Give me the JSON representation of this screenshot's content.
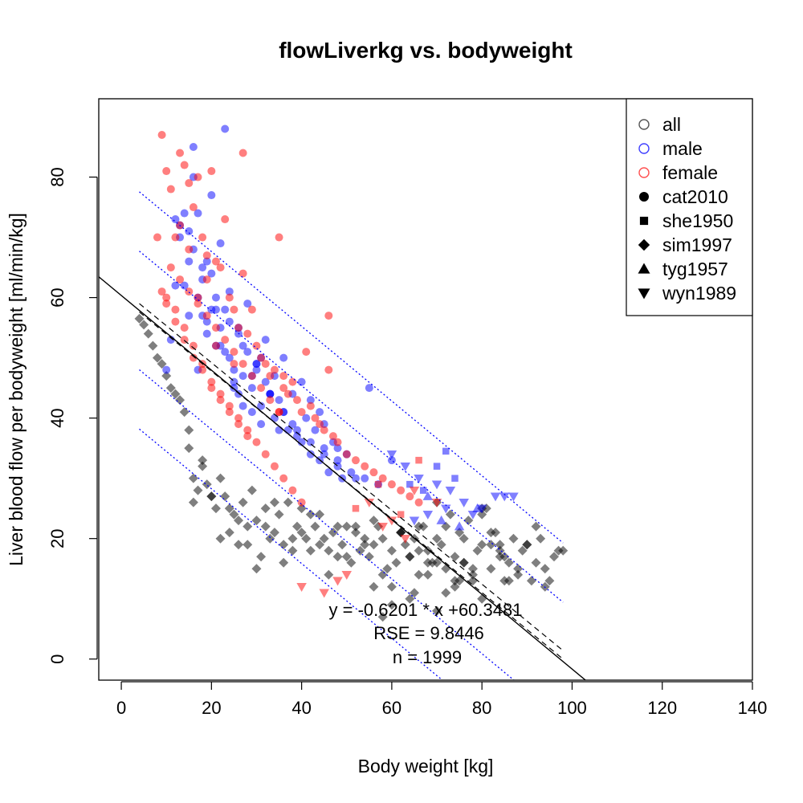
{
  "chart_data": {
    "type": "scatter",
    "title": "flowLiverkg vs. bodyweight",
    "xlabel": "Body weight [kg]",
    "ylabel": "Liver blood flow per bodyweight [ml/min/kg]",
    "xlim": [
      -5,
      140
    ],
    "ylim": [
      -3.5,
      93
    ],
    "xticks": [
      0,
      20,
      40,
      60,
      80,
      100,
      120,
      140
    ],
    "yticks": [
      0,
      20,
      40,
      60,
      80
    ],
    "xtick_labels": [
      "0",
      "20",
      "40",
      "60",
      "80",
      "100",
      "120",
      "140"
    ],
    "ytick_labels": [
      "0",
      "20",
      "40",
      "60",
      "80"
    ],
    "grid": false,
    "legend_position": "top-right",
    "legend": [
      {
        "label": "all",
        "kind": "color",
        "color": "#555555",
        "marker": "circle-open"
      },
      {
        "label": "male",
        "kind": "color",
        "color": "#4040ff",
        "marker": "circle-open"
      },
      {
        "label": "female",
        "kind": "color",
        "color": "#ff5050",
        "marker": "circle-open"
      },
      {
        "label": "cat2010",
        "kind": "study",
        "color": "#000000",
        "marker": "circle"
      },
      {
        "label": "she1950",
        "kind": "study",
        "color": "#000000",
        "marker": "square"
      },
      {
        "label": "sim1997",
        "kind": "study",
        "color": "#000000",
        "marker": "diamond"
      },
      {
        "label": "tyg1957",
        "kind": "study",
        "color": "#000000",
        "marker": "triangle-up"
      },
      {
        "label": "wyn1989",
        "kind": "study",
        "color": "#000000",
        "marker": "triangle-down"
      }
    ],
    "colors": {
      "all": "#000000",
      "male": "#0000ff",
      "female": "#ff0000"
    },
    "regression": {
      "slope": -0.6201,
      "intercept": 60.3481
    },
    "bands": {
      "sd_offsets": [
        -9.8446,
        -19.6892,
        9.8446,
        19.6892
      ],
      "x_range": [
        4,
        98
      ]
    },
    "ci": {
      "x_range": [
        4,
        98
      ],
      "lower": [
        57.6,
        0.0
      ],
      "upper": [
        59.0,
        1.4
      ]
    },
    "annotations": [
      "y = -0.6201 * x +60.3481",
      "RSE = 9.8446",
      "n = 1999"
    ],
    "series": [
      {
        "group": "all",
        "marker": "diamond",
        "x": [
          4,
          5,
          6,
          7,
          8,
          9,
          10,
          11,
          12,
          13,
          14,
          15,
          16,
          16,
          17,
          18,
          19,
          20,
          21,
          22,
          23,
          24,
          25,
          26,
          27,
          28,
          29,
          30,
          31,
          32,
          33,
          34,
          35,
          36,
          37,
          38,
          39,
          40,
          41,
          42,
          43,
          44,
          45,
          46,
          47,
          48,
          49,
          50,
          51,
          52,
          53,
          54,
          55,
          56,
          57,
          58,
          59,
          60,
          61,
          62,
          63,
          64,
          65,
          66,
          67,
          68,
          69,
          70,
          71,
          72,
          73,
          74,
          75,
          76,
          77,
          78,
          79,
          80,
          81,
          82,
          83,
          84,
          85,
          86,
          87,
          88,
          89,
          90,
          91,
          92,
          93,
          94,
          95,
          96,
          97,
          98,
          15,
          18,
          20,
          22,
          24,
          26,
          28,
          30,
          32,
          34,
          36,
          38,
          40,
          42,
          44,
          46,
          48,
          50,
          52,
          54,
          56,
          58,
          60,
          62,
          64,
          66,
          68,
          70,
          72,
          74,
          76,
          78,
          80,
          82,
          84,
          86,
          88,
          90,
          92,
          94,
          60,
          65,
          70,
          75,
          80,
          85,
          62,
          68,
          72,
          78,
          82,
          58,
          64,
          74,
          76,
          70,
          66,
          80,
          84,
          56
        ],
        "y": [
          56.5,
          55.5,
          54,
          52,
          50,
          49,
          47,
          45,
          44,
          43,
          41,
          35,
          26,
          30,
          28,
          32,
          29,
          27,
          25,
          30,
          27,
          21,
          24,
          19,
          26,
          22,
          28,
          23,
          17,
          25,
          20,
          21,
          24,
          19,
          26,
          18,
          22,
          21,
          20,
          24,
          22,
          19,
          20,
          18,
          21,
          17,
          19,
          22,
          16,
          21,
          18,
          20,
          17,
          19,
          22,
          20,
          15,
          18,
          16,
          21,
          19,
          17,
          20,
          14,
          22,
          18,
          16,
          20,
          19,
          15,
          24,
          17,
          21,
          16,
          23,
          14,
          18,
          19,
          25,
          15,
          21,
          17,
          13,
          16,
          20,
          14,
          18,
          19,
          13,
          16,
          20,
          15,
          13,
          17,
          18,
          18,
          38,
          33,
          27,
          20,
          25,
          23,
          19,
          15,
          22,
          26,
          16,
          20,
          25,
          18,
          24,
          14,
          22,
          17,
          22,
          19,
          23,
          14,
          12,
          21,
          17,
          18,
          14,
          16,
          22,
          13,
          20,
          13,
          25,
          21,
          18,
          13,
          15,
          19,
          22,
          12,
          9,
          11,
          8,
          13,
          10,
          17,
          21,
          16,
          11,
          15,
          19,
          7,
          10,
          12,
          16,
          26,
          22,
          24,
          19,
          12
        ]
      },
      {
        "group": "male",
        "marker": "circle",
        "x": [
          12,
          13,
          14,
          15,
          16,
          17,
          18,
          19,
          20,
          21,
          22,
          23,
          24,
          25,
          26,
          27,
          28,
          29,
          30,
          31,
          32,
          33,
          34,
          35,
          36,
          37,
          38,
          39,
          40,
          41,
          42,
          43,
          44,
          45,
          46,
          47,
          48,
          49,
          50,
          14,
          16,
          18,
          20,
          22,
          24,
          26,
          28,
          30,
          32,
          34,
          36,
          38,
          40,
          42,
          44,
          17,
          19,
          21,
          23,
          25,
          27,
          29,
          31,
          33,
          35,
          10,
          12,
          15,
          18,
          21,
          24,
          27,
          30,
          33,
          36,
          39,
          42,
          45,
          48,
          51,
          54,
          57,
          22,
          16,
          20,
          55,
          60,
          45,
          48,
          52,
          19,
          23,
          13,
          17,
          25,
          29,
          11,
          15,
          26,
          31
        ],
        "y": [
          73,
          70,
          74,
          66,
          85,
          60,
          63,
          56,
          58,
          52,
          55,
          88,
          50,
          48,
          54,
          47,
          51,
          45,
          49,
          42,
          46,
          44,
          40,
          43,
          41,
          38,
          39,
          37,
          36,
          40,
          34,
          38,
          33,
          35,
          31,
          36,
          32,
          30,
          34,
          62,
          68,
          57,
          64,
          52,
          61,
          55,
          59,
          49,
          53,
          47,
          50,
          44,
          46,
          43,
          41,
          48,
          54,
          60,
          51,
          45,
          42,
          47,
          39,
          44,
          38,
          48,
          62,
          71,
          65,
          58,
          56,
          52,
          48,
          44,
          41,
          38,
          36,
          34,
          33,
          31,
          30,
          29,
          69,
          80,
          77,
          45,
          33,
          39,
          35,
          30,
          66,
          58,
          72,
          74,
          46,
          41,
          53,
          57,
          44,
          50
        ]
      },
      {
        "group": "male",
        "marker": "triangle-down",
        "x": [
          60,
          63,
          66,
          70,
          73,
          76,
          80,
          83,
          85,
          87,
          72,
          78,
          65,
          68
        ],
        "y": [
          34,
          32,
          30,
          29,
          28,
          26,
          25,
          27,
          27,
          27,
          25,
          24,
          23,
          24
        ]
      },
      {
        "group": "male",
        "marker": "square",
        "x": [
          72,
          70,
          64,
          67,
          74
        ],
        "y": [
          34.5,
          32,
          29,
          28,
          30
        ]
      },
      {
        "group": "male",
        "marker": "triangle-up",
        "x": [
          71,
          75,
          79,
          68
        ],
        "y": [
          23,
          22,
          25,
          27
        ]
      },
      {
        "group": "female",
        "marker": "circle",
        "x": [
          9,
          10,
          11,
          12,
          13,
          14,
          15,
          16,
          17,
          18,
          19,
          20,
          21,
          22,
          23,
          24,
          25,
          26,
          27,
          28,
          29,
          30,
          31,
          32,
          33,
          34,
          35,
          36,
          37,
          38,
          39,
          40,
          41,
          42,
          43,
          44,
          45,
          46,
          47,
          48,
          50,
          52,
          54,
          56,
          58,
          60,
          62,
          64,
          66,
          11,
          13,
          15,
          17,
          19,
          21,
          23,
          25,
          27,
          29,
          31,
          33,
          35,
          12,
          14,
          16,
          18,
          20,
          22,
          24,
          26,
          28,
          30,
          32,
          34,
          36,
          38,
          40,
          10,
          12,
          14,
          16,
          18,
          20,
          22,
          24,
          26,
          28,
          27,
          36,
          46,
          15,
          17,
          21,
          8,
          9,
          10,
          13,
          19,
          25,
          35
        ],
        "y": [
          87,
          81,
          78,
          70,
          84,
          82,
          79,
          75,
          80,
          70,
          67,
          81,
          66,
          65,
          73,
          60,
          58,
          55,
          84,
          54,
          58,
          52,
          50,
          49,
          47,
          48,
          70,
          45,
          44,
          46,
          43,
          41,
          51,
          42,
          40,
          39,
          38,
          57,
          37,
          36,
          34,
          33,
          32,
          31,
          30,
          29,
          28,
          27,
          26,
          65,
          63,
          61,
          59,
          57,
          55,
          53,
          51,
          49,
          47,
          45,
          43,
          41,
          58,
          55,
          52,
          49,
          46,
          44,
          42,
          40,
          38,
          36,
          34,
          32,
          30,
          28,
          26,
          60,
          56,
          53,
          50,
          48,
          45,
          43,
          41,
          39,
          37,
          64,
          47,
          48,
          68,
          60,
          52,
          70,
          61,
          59,
          72,
          63,
          49,
          41
        ]
      },
      {
        "group": "female",
        "marker": "triangle-down",
        "x": [
          40,
          45,
          50,
          55,
          60,
          65,
          48,
          58,
          63,
          70
        ],
        "y": [
          12,
          11,
          14,
          26,
          23,
          28,
          13,
          22,
          20,
          26
        ]
      },
      {
        "group": "female",
        "marker": "square",
        "x": [
          52,
          57,
          62,
          66
        ],
        "y": [
          25,
          29,
          24,
          33
        ]
      }
    ]
  }
}
